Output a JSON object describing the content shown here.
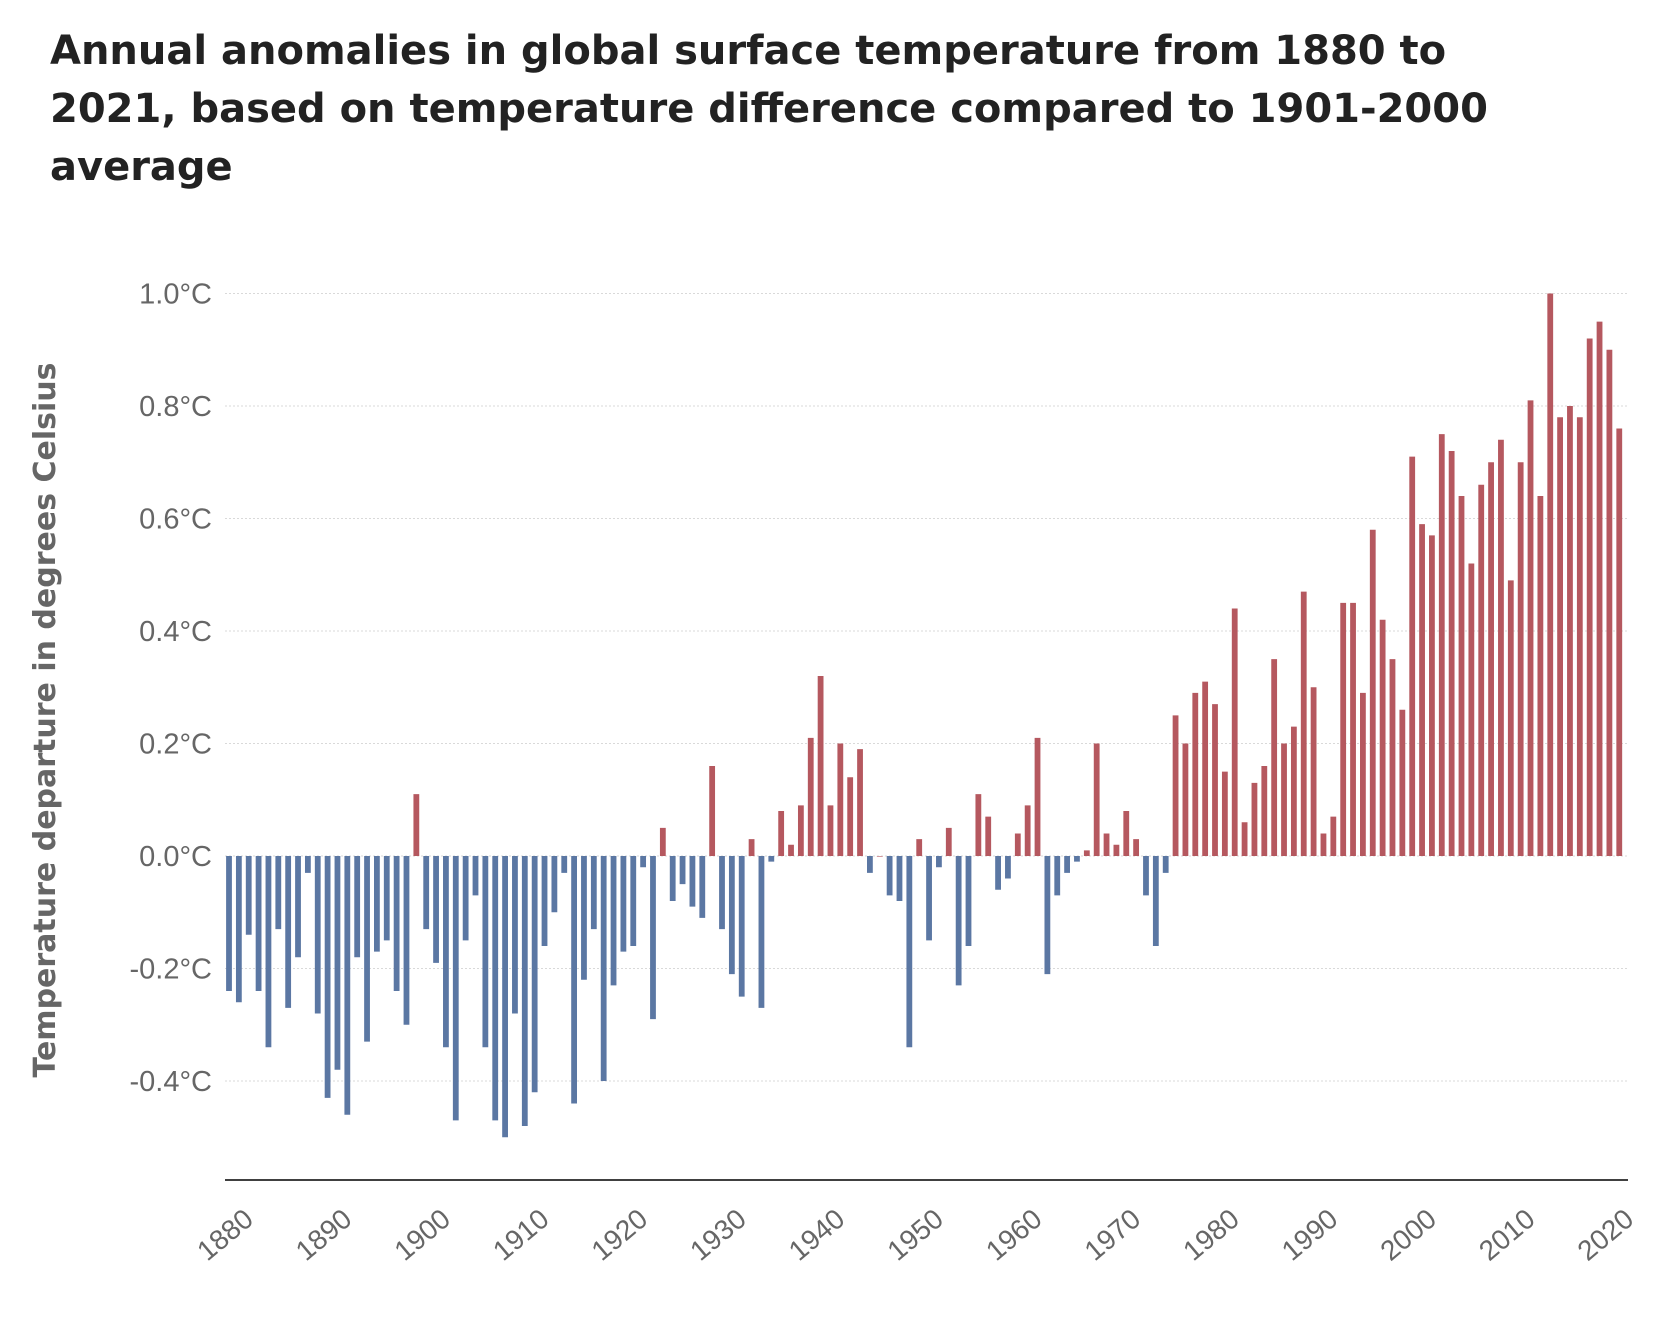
{
  "chart_data": {
    "type": "bar",
    "title": "Annual anomalies in global surface temperature from 1880 to 2021, based on temperature difference compared to 1901-2000 average",
    "xlabel": "",
    "ylabel": "Temperature departure in degrees Celsius",
    "ylim": [
      -0.6,
      1.05
    ],
    "y_ticks": [
      -0.4,
      -0.2,
      0.0,
      0.2,
      0.4,
      0.6,
      0.8,
      1.0
    ],
    "y_tick_labels": [
      "-0.4°C",
      "-0.2°C",
      "0.0°C",
      "0.2°C",
      "0.4°C",
      "0.6°C",
      "0.8°C",
      "1.0°C"
    ],
    "x_tick_labels": [
      "1880",
      "1890",
      "1900",
      "1910",
      "1920",
      "1930",
      "1940",
      "1950",
      "1960",
      "1970",
      "1980",
      "1990",
      "2000",
      "2010",
      "2020"
    ],
    "x_ticks": [
      1880,
      1890,
      1900,
      1910,
      1920,
      1930,
      1940,
      1950,
      1960,
      1970,
      1980,
      1990,
      2000,
      2010,
      2020
    ],
    "grid": true,
    "legend": "none",
    "colors": {
      "positive": "#b5585f",
      "negative": "#5b77a3"
    },
    "years": [
      1880,
      1881,
      1882,
      1883,
      1884,
      1885,
      1886,
      1887,
      1888,
      1889,
      1890,
      1891,
      1892,
      1893,
      1894,
      1895,
      1896,
      1897,
      1898,
      1899,
      1900,
      1901,
      1902,
      1903,
      1904,
      1905,
      1906,
      1907,
      1908,
      1909,
      1910,
      1911,
      1912,
      1913,
      1914,
      1915,
      1916,
      1917,
      1918,
      1919,
      1920,
      1921,
      1922,
      1923,
      1924,
      1925,
      1926,
      1927,
      1928,
      1929,
      1930,
      1931,
      1932,
      1933,
      1934,
      1935,
      1936,
      1937,
      1938,
      1939,
      1940,
      1941,
      1942,
      1943,
      1944,
      1945,
      1946,
      1947,
      1948,
      1949,
      1950,
      1951,
      1952,
      1953,
      1954,
      1955,
      1956,
      1957,
      1958,
      1959,
      1960,
      1961,
      1962,
      1963,
      1964,
      1965,
      1966,
      1967,
      1968,
      1969,
      1970,
      1971,
      1972,
      1973,
      1974,
      1975,
      1976,
      1977,
      1978,
      1979,
      1980,
      1981,
      1982,
      1983,
      1984,
      1985,
      1986,
      1987,
      1988,
      1989,
      1990,
      1991,
      1992,
      1993,
      1994,
      1995,
      1996,
      1997,
      1998,
      1999,
      2000,
      2001,
      2002,
      2003,
      2004,
      2005,
      2006,
      2007,
      2008,
      2009,
      2010,
      2011,
      2012,
      2013,
      2014,
      2015,
      2016,
      2017,
      2018,
      2019,
      2020,
      2021
    ],
    "values": [
      -0.24,
      -0.26,
      -0.14,
      -0.24,
      -0.34,
      -0.13,
      -0.27,
      -0.18,
      -0.03,
      -0.28,
      -0.43,
      -0.38,
      -0.46,
      -0.18,
      -0.33,
      -0.17,
      -0.15,
      -0.24,
      -0.3,
      0.11,
      -0.13,
      -0.19,
      -0.34,
      -0.47,
      -0.15,
      -0.07,
      -0.34,
      -0.47,
      -0.5,
      -0.28,
      -0.48,
      -0.42,
      -0.16,
      -0.1,
      -0.03,
      -0.44,
      -0.22,
      -0.13,
      -0.4,
      -0.23,
      -0.17,
      -0.16,
      -0.02,
      -0.29,
      0.05,
      -0.08,
      -0.05,
      -0.09,
      -0.11,
      0.16,
      -0.13,
      -0.21,
      -0.25,
      0.03,
      -0.27,
      -0.01,
      0.08,
      0.02,
      0.09,
      0.21,
      0.32,
      0.09,
      0.2,
      0.14,
      0.19,
      -0.03,
      0.0,
      -0.07,
      -0.08,
      -0.34,
      0.03,
      -0.15,
      -0.02,
      0.05,
      -0.23,
      -0.16,
      0.11,
      0.07,
      -0.06,
      -0.04,
      0.04,
      0.09,
      0.21,
      -0.21,
      -0.07,
      -0.03,
      -0.01,
      0.01,
      0.2,
      0.04,
      0.02,
      0.08,
      0.03,
      -0.07,
      -0.16,
      -0.03,
      0.25,
      0.2,
      0.29,
      0.31,
      0.27,
      0.15,
      0.44,
      0.06,
      0.13,
      0.16,
      0.35,
      0.2,
      0.23,
      0.47,
      0.3,
      0.04,
      0.07,
      0.45,
      0.45,
      0.29,
      0.58,
      0.42,
      0.35,
      0.26,
      0.71,
      0.59,
      0.57,
      0.75,
      0.72,
      0.64,
      0.52,
      0.66,
      0.7,
      0.74,
      0.49,
      0.7,
      0.81,
      0.64,
      1.0,
      0.78,
      0.8,
      0.78,
      0.92,
      0.95,
      0.9,
      0.76
    ]
  }
}
